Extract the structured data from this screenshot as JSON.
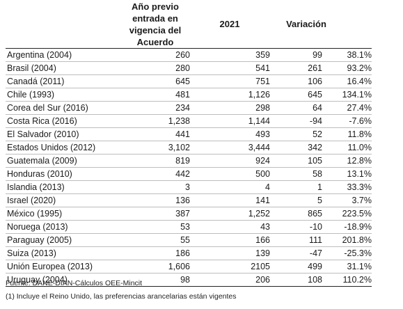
{
  "header": {
    "base_year": "Año previo entrada en vigencia del Acuerdo",
    "base_year_lines": [
      "Año previo",
      "entrada en",
      "vigencia del",
      "Acuerdo"
    ],
    "year_2021": "2021",
    "variation": "Variación"
  },
  "rows": [
    {
      "name": "Argentina (2004)",
      "base": "260",
      "y2021": "359",
      "diff": "99",
      "pct": "38.1%"
    },
    {
      "name": "Brasil (2004)",
      "base": "280",
      "y2021": "541",
      "diff": "261",
      "pct": "93.2%"
    },
    {
      "name": "Canadá (2011)",
      "base": "645",
      "y2021": "751",
      "diff": "106",
      "pct": "16.4%"
    },
    {
      "name": "Chile (1993)",
      "base": "481",
      "y2021": "1,126",
      "diff": "645",
      "pct": "134.1%"
    },
    {
      "name": "Corea del Sur (2016)",
      "base": "234",
      "y2021": "298",
      "diff": "64",
      "pct": "27.4%"
    },
    {
      "name": "Costa Rica (2016)",
      "base": "1,238",
      "y2021": "1,144",
      "diff": "-94",
      "pct": "-7.6%"
    },
    {
      "name": "El Salvador (2010)",
      "base": "441",
      "y2021": "493",
      "diff": "52",
      "pct": "11.8%"
    },
    {
      "name": "Estados Unidos (2012)",
      "base": "3,102",
      "y2021": "3,444",
      "diff": "342",
      "pct": "11.0%"
    },
    {
      "name": "Guatemala (2009)",
      "base": "819",
      "y2021": "924",
      "diff": "105",
      "pct": "12.8%"
    },
    {
      "name": "Honduras (2010)",
      "base": "442",
      "y2021": "500",
      "diff": "58",
      "pct": "13.1%"
    },
    {
      "name": "Islandia (2013)",
      "base": "3",
      "y2021": "4",
      "diff": "1",
      "pct": "33.3%"
    },
    {
      "name": "Israel (2020)",
      "base": "136",
      "y2021": "141",
      "diff": "5",
      "pct": "3.7%"
    },
    {
      "name": "México (1995)",
      "base": "387",
      "y2021": "1,252",
      "diff": "865",
      "pct": "223.5%"
    },
    {
      "name": "Noruega (2013)",
      "base": "53",
      "y2021": "43",
      "diff": "-10",
      "pct": "-18.9%"
    },
    {
      "name": "Paraguay (2005)",
      "base": "55",
      "y2021": "166",
      "diff": "111",
      "pct": "201.8%"
    },
    {
      "name": "Suiza (2013)",
      "base": "186",
      "y2021": "139",
      "diff": "-47",
      "pct": "-25.3%"
    },
    {
      "name": "Unión Europea (2013)",
      "base": "1,606",
      "y2021": "2105",
      "diff": "499",
      "pct": "31.1%"
    },
    {
      "name": "Uruguay (2004)",
      "base": "98",
      "y2021": "206",
      "diff": "108",
      "pct": "110.2%"
    }
  ],
  "footer": {
    "source": "Fuente: DANE-DIAN-Cálculos OEE-Mincit",
    "note": "(1) Incluye el Reino Unido, las preferencias arancelarias están vigentes"
  }
}
